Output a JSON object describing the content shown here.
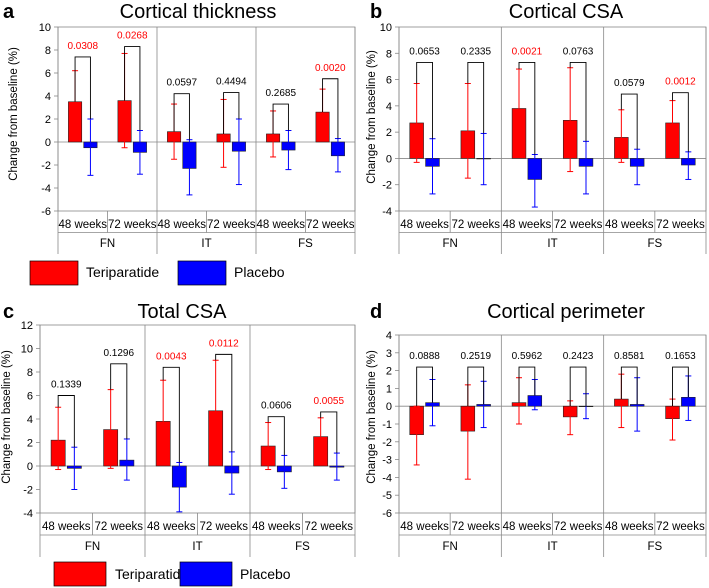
{
  "colors": {
    "teriparatide": "#ff0000",
    "placebo": "#0000ff",
    "p_black": "#000000",
    "p_red": "#ff0000"
  },
  "legend": {
    "series": [
      "Teriparatide",
      "Placebo"
    ]
  },
  "chart_data": [
    {
      "type": "bar",
      "letter": "a",
      "title": "Cortical thickness",
      "ylabel": "Change from baseline (%)",
      "ylim": [
        -6,
        10
      ],
      "yticks": [
        -6,
        -4,
        -2,
        0,
        2,
        4,
        6,
        8,
        10
      ],
      "categories": [
        "48 weeks",
        "72 weeks",
        "48 weeks",
        "72 weeks",
        "48 weeks",
        "72 weeks"
      ],
      "groups": [
        "FN",
        "IT",
        "FS"
      ],
      "series": [
        {
          "name": "Teriparatide",
          "values": [
            3.5,
            3.6,
            0.9,
            0.7,
            0.7,
            2.6
          ],
          "err_low": [
            0.8,
            -0.5,
            -1.5,
            -2.2,
            -1.3,
            0.4
          ],
          "err_high": [
            6.2,
            7.7,
            3.3,
            3.7,
            2.7,
            4.6
          ]
        },
        {
          "name": "Placebo",
          "values": [
            -0.5,
            -0.9,
            -2.3,
            -0.8,
            -0.7,
            -1.2
          ],
          "err_low": [
            -2.9,
            -2.8,
            -4.6,
            -3.7,
            -2.4,
            -2.6
          ],
          "err_high": [
            2.0,
            1.0,
            0.2,
            2.0,
            1.0,
            0.3
          ]
        }
      ],
      "pvalues": [
        "0.0308",
        "0.0268",
        "0.0597",
        "0.4494",
        "0.2685",
        "0.0020"
      ],
      "p_significant": [
        true,
        true,
        false,
        false,
        false,
        true
      ],
      "bracket_y": [
        7.4,
        8.3,
        4.2,
        4.3,
        3.3,
        5.5
      ],
      "drop_to": [
        [
          3.5,
          2.0
        ],
        [
          3.6,
          1.0
        ],
        [
          0.9,
          0.2
        ],
        [
          0.7,
          2.0
        ],
        [
          0.7,
          1.0
        ],
        [
          2.6,
          0.3
        ]
      ]
    },
    {
      "type": "bar",
      "letter": "b",
      "title": "Cortical CSA",
      "ylabel": "Change from baseline (%)",
      "ylim": [
        -4,
        10
      ],
      "yticks": [
        -4,
        -2,
        0,
        2,
        4,
        6,
        8,
        10
      ],
      "categories": [
        "48 weeks",
        "72 weeks",
        "48 weeks",
        "72 weeks",
        "48 weeks",
        "72 weeks"
      ],
      "groups": [
        "FN",
        "IT",
        "FS"
      ],
      "series": [
        {
          "name": "Teriparatide",
          "values": [
            2.7,
            2.1,
            3.8,
            2.9,
            1.6,
            2.7
          ],
          "err_low": [
            -0.3,
            -1.5,
            0.4,
            -1.0,
            -0.3,
            0.9
          ],
          "err_high": [
            5.7,
            5.7,
            6.8,
            6.9,
            3.7,
            4.4
          ]
        },
        {
          "name": "Placebo",
          "values": [
            -0.6,
            0.0,
            -1.6,
            -0.6,
            -0.6,
            -0.5
          ],
          "err_low": [
            -2.7,
            -2.0,
            -3.7,
            -2.7,
            -2.0,
            -1.6
          ],
          "err_high": [
            1.5,
            1.9,
            0.3,
            1.3,
            0.7,
            0.5
          ]
        }
      ],
      "pvalues": [
        "0.0653",
        "0.2335",
        "0.0021",
        "0.0763",
        "0.0579",
        "0.0012"
      ],
      "p_significant": [
        false,
        false,
        true,
        false,
        false,
        true
      ],
      "bracket_y": [
        7.3,
        7.3,
        7.3,
        7.3,
        4.9,
        5.0
      ],
      "drop_to": [
        [
          5.7,
          1.5
        ],
        [
          5.7,
          1.9
        ],
        [
          6.8,
          0.3
        ],
        [
          6.9,
          1.3
        ],
        [
          3.7,
          0.7
        ],
        [
          4.4,
          0.5
        ]
      ]
    },
    {
      "type": "bar",
      "letter": "c",
      "title": "Total CSA",
      "ylabel": "Change from baseline (%)",
      "ylim": [
        -4,
        12
      ],
      "yticks": [
        -4,
        -2,
        0,
        2,
        4,
        6,
        8,
        10,
        12
      ],
      "categories": [
        "48 weeks",
        "72 weeks",
        "48 weeks",
        "72 weeks",
        "48 weeks",
        "72 weeks"
      ],
      "groups": [
        "FN",
        "IT",
        "FS"
      ],
      "series": [
        {
          "name": "Teriparatide",
          "values": [
            2.2,
            3.1,
            3.8,
            4.7,
            1.7,
            2.5
          ],
          "err_low": [
            -0.3,
            -0.2,
            0.3,
            0.1,
            -0.3,
            0.8
          ],
          "err_high": [
            5.0,
            6.5,
            7.3,
            9.0,
            3.7,
            4.1
          ]
        },
        {
          "name": "Placebo",
          "values": [
            -0.2,
            0.5,
            -1.8,
            -0.6,
            -0.5,
            -0.1
          ],
          "err_low": [
            -2.0,
            -1.2,
            -3.9,
            -2.4,
            -1.9,
            -1.2
          ],
          "err_high": [
            1.6,
            2.3,
            0.3,
            1.2,
            0.9,
            1.1
          ]
        }
      ],
      "pvalues": [
        "0.1339",
        "0.1296",
        "0.0043",
        "0.0112",
        "0.0606",
        "0.0055"
      ],
      "p_significant": [
        false,
        false,
        true,
        true,
        false,
        true
      ],
      "bracket_y": [
        6.0,
        8.7,
        8.4,
        9.5,
        4.2,
        4.6
      ],
      "drop_to": [
        [
          5.0,
          1.6
        ],
        [
          6.5,
          2.3
        ],
        [
          7.3,
          0.3
        ],
        [
          9.0,
          1.2
        ],
        [
          3.7,
          0.9
        ],
        [
          4.1,
          1.1
        ]
      ]
    },
    {
      "type": "bar",
      "letter": "d",
      "title": "Cortical perimeter",
      "ylabel": "Change from baseline (%)",
      "ylim": [
        -6,
        4
      ],
      "yticks": [
        -6,
        -5,
        -4,
        -3,
        -2,
        -1,
        0,
        1,
        2,
        3,
        4
      ],
      "categories": [
        "48 weeks",
        "72 weeks",
        "48 weeks",
        "72 weeks",
        "48 weeks",
        "72 weeks"
      ],
      "groups": [
        "FN",
        "IT",
        "FS"
      ],
      "series": [
        {
          "name": "Teriparatide",
          "values": [
            -1.6,
            -1.4,
            0.2,
            -0.6,
            0.4,
            -0.7
          ],
          "err_low": [
            -3.3,
            -4.1,
            -1.0,
            -1.6,
            -1.2,
            -1.9
          ],
          "err_high": [
            0.0,
            1.2,
            1.6,
            0.3,
            1.8,
            0.4
          ]
        },
        {
          "name": "Placebo",
          "values": [
            0.2,
            0.1,
            0.6,
            0.0,
            0.1,
            0.5
          ],
          "err_low": [
            -1.1,
            -1.2,
            -0.2,
            -0.7,
            -1.4,
            -0.8
          ],
          "err_high": [
            1.5,
            1.4,
            1.5,
            0.7,
            1.6,
            1.7
          ]
        }
      ],
      "pvalues": [
        "0.0888",
        "0.2519",
        "0.5962",
        "0.2423",
        "0.8581",
        "0.1653"
      ],
      "p_significant": [
        false,
        false,
        false,
        false,
        false,
        false
      ],
      "bracket_y": [
        2.2,
        2.2,
        2.2,
        2.2,
        2.2,
        2.2
      ],
      "drop_to": [
        [
          0.0,
          0.2
        ],
        [
          0.0,
          0.1
        ],
        [
          0.2,
          0.6
        ],
        [
          0.0,
          0.0
        ],
        [
          0.4,
          0.1
        ],
        [
          0.0,
          0.5
        ]
      ]
    }
  ]
}
